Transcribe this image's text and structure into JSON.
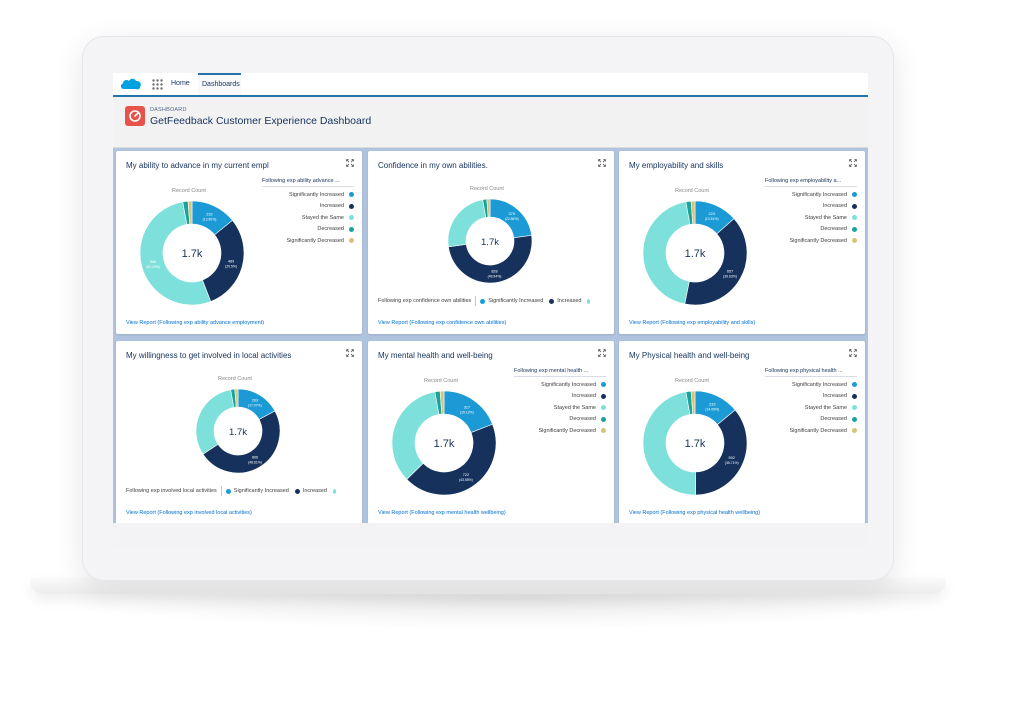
{
  "colors": {
    "significantly_increased": "#1b9ad6",
    "increased": "#16325c",
    "stayed_the_same": "#7ee0da",
    "decreased": "#1aa39a",
    "significantly_decreased": "#d9c37a"
  },
  "nav": {
    "home_label": "Home",
    "tab_label": "Dashboards"
  },
  "header": {
    "kicker": "DASHBOARD",
    "title": "GetFeedback Customer Experience Dashboard"
  },
  "cards": [
    {
      "title": "My ability to advance in my current empl",
      "record_count": "Record Count",
      "total": "1.7k",
      "legend_type": "vertical",
      "legend_title": "Following exp ability advance ...",
      "legend": [
        "Significantly Increased",
        "Increased",
        "Stayed the Same",
        "Decreased",
        "Significantly Decreased"
      ],
      "view_report": "View Report (Following exp ability advance employment)",
      "slices": [
        {
          "label": "232",
          "pct": "(13.99%)",
          "value": 13.99,
          "color": "significantly_increased"
        },
        {
          "label": "489",
          "pct": "(29.5%)",
          "value": 29.5,
          "color": "increased"
        },
        {
          "label": "866",
          "pct": "(52.23%)",
          "value": 52.23,
          "color": "stayed_the_same"
        },
        {
          "label": "",
          "pct": "",
          "value": 1.6,
          "color": "decreased"
        },
        {
          "label": "",
          "pct": "",
          "value": 1.2,
          "color": "significantly_decreased"
        }
      ]
    },
    {
      "title": "Confidence in my own abilities.",
      "record_count": "Record Count",
      "total": "1.7k",
      "legend_type": "horizontal",
      "legend_title": "Following exp confidence own abilities",
      "legend": [
        "Significantly Increased",
        "Increased"
      ],
      "view_report": "View Report (Following exp confidence own abilities)",
      "slices": [
        {
          "label": "379",
          "pct": "(22.86%)",
          "value": 22.86,
          "color": "significantly_increased"
        },
        {
          "label": "828",
          "pct": "(49.94%)",
          "value": 49.94,
          "color": "increased"
        },
        {
          "label": "",
          "pct": "",
          "value": 24.4,
          "color": "stayed_the_same"
        },
        {
          "label": "",
          "pct": "",
          "value": 1.6,
          "color": "decreased"
        },
        {
          "label": "",
          "pct": "",
          "value": 1.2,
          "color": "significantly_decreased"
        }
      ]
    },
    {
      "title": "My employability and skills",
      "record_count": "Record Count",
      "total": "1.7k",
      "legend_type": "vertical",
      "legend_title": "Following exp employability a...",
      "legend": [
        "Significantly Increased",
        "Increased",
        "Stayed the Same",
        "Decreased",
        "Significantly Decreased"
      ],
      "view_report": "View Report (Following exp employability and skills)",
      "slices": [
        {
          "label": "224",
          "pct": "(13.51%)",
          "value": 13.51,
          "color": "significantly_increased"
        },
        {
          "label": "657",
          "pct": "(39.63%)",
          "value": 39.63,
          "color": "increased"
        },
        {
          "label": "",
          "pct": "",
          "value": 44.0,
          "color": "stayed_the_same"
        },
        {
          "label": "",
          "pct": "",
          "value": 1.6,
          "color": "decreased"
        },
        {
          "label": "",
          "pct": "",
          "value": 1.2,
          "color": "significantly_decreased"
        }
      ]
    },
    {
      "title": "My willingness to get involved in local activities",
      "record_count": "Record Count",
      "total": "1.7k",
      "legend_type": "horizontal",
      "legend_title": "Following exp involved local activities",
      "legend": [
        "Significantly Increased",
        "Increased"
      ],
      "view_report": "View Report (Following exp involved local activities)",
      "slices": [
        {
          "label": "283",
          "pct": "(17.07%)",
          "value": 17.07,
          "color": "significantly_increased"
        },
        {
          "label": "806",
          "pct": "(48.61%)",
          "value": 48.61,
          "color": "increased"
        },
        {
          "label": "",
          "pct": "",
          "value": 31.5,
          "color": "stayed_the_same"
        },
        {
          "label": "",
          "pct": "",
          "value": 1.6,
          "color": "decreased"
        },
        {
          "label": "",
          "pct": "",
          "value": 1.2,
          "color": "significantly_decreased"
        }
      ]
    },
    {
      "title": "My mental health and well-being",
      "record_count": "Record Count",
      "total": "1.7k",
      "legend_type": "vertical",
      "legend_title": "Following exp mental health ...",
      "legend": [
        "Significantly Increased",
        "Increased",
        "Stayed the Same",
        "Decreased",
        "Significantly Decreased"
      ],
      "view_report": "View Report (Following exp mental health wellbeing)",
      "slices": [
        {
          "label": "317",
          "pct": "(19.12%)",
          "value": 19.12,
          "color": "significantly_increased"
        },
        {
          "label": "722",
          "pct": "(43.55%)",
          "value": 43.55,
          "color": "increased"
        },
        {
          "label": "",
          "pct": "",
          "value": 34.5,
          "color": "stayed_the_same"
        },
        {
          "label": "",
          "pct": "",
          "value": 1.6,
          "color": "decreased"
        },
        {
          "label": "",
          "pct": "",
          "value": 1.2,
          "color": "significantly_decreased"
        }
      ]
    },
    {
      "title": "My Physical health and well-being",
      "record_count": "Record Count",
      "total": "1.7k",
      "legend_type": "vertical",
      "legend_title": "Following exp physical health ...",
      "legend": [
        "Significantly Increased",
        "Increased",
        "Stayed the Same",
        "Decreased",
        "Significantly Decreased"
      ],
      "view_report": "View Report (Following exp physical health wellbeing)",
      "slices": [
        {
          "label": "233",
          "pct": "(14.05%)",
          "value": 14.05,
          "color": "significantly_increased"
        },
        {
          "label": "592",
          "pct": "(35.71%)",
          "value": 35.71,
          "color": "increased"
        },
        {
          "label": "",
          "pct": "",
          "value": 47.4,
          "color": "stayed_the_same"
        },
        {
          "label": "",
          "pct": "",
          "value": 1.6,
          "color": "decreased"
        },
        {
          "label": "",
          "pct": "",
          "value": 1.2,
          "color": "significantly_decreased"
        }
      ]
    }
  ]
}
